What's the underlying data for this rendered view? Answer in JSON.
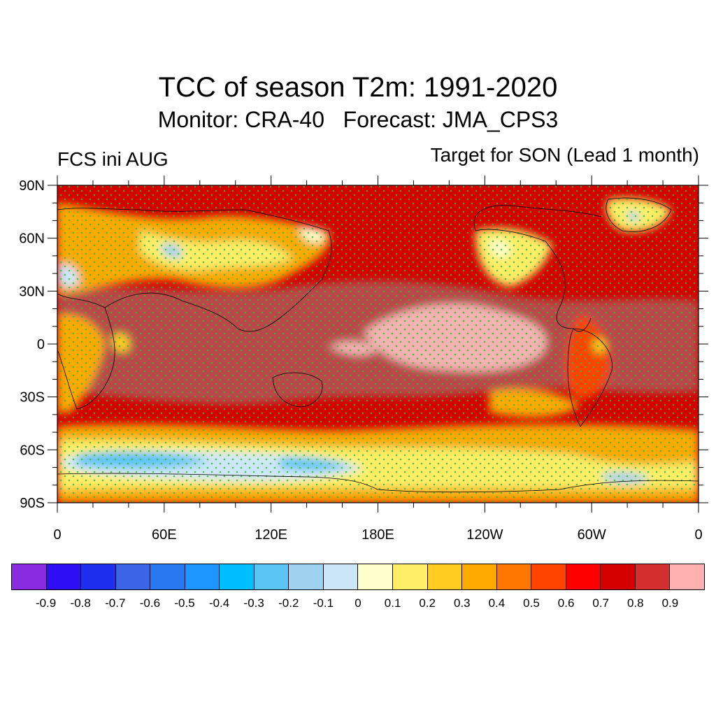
{
  "title": "TCC of season T2m: 1991-2020",
  "subtitle": {
    "monitor": "Monitor: CRA-40",
    "forecast": "Forecast: JMA_CPS3"
  },
  "left_label": "FCS ini AUG",
  "right_label": "Target for SON (Lead 1 month)",
  "map": {
    "projection": "equirectangular",
    "lon_range": [
      0,
      360
    ],
    "lat_range": [
      -90,
      90
    ],
    "lat_ticks": [
      "90N",
      "60N",
      "30N",
      "0",
      "30S",
      "60S",
      "90S"
    ],
    "lon_ticks": [
      "0",
      "60E",
      "120E",
      "180E",
      "120W",
      "60W",
      "0"
    ],
    "stipple_color": "#3cb43c",
    "coastline_color": "#000000"
  },
  "colorbar": {
    "colors": [
      "#8a2be2",
      "#2e0ff5",
      "#1e2ff0",
      "#3c64e6",
      "#2878f0",
      "#1e96ff",
      "#00bfff",
      "#5ac5f5",
      "#a0d2f0",
      "#cce8f8",
      "#ffffcc",
      "#ffee66",
      "#ffcc22",
      "#ffaa00",
      "#ff7700",
      "#ff4400",
      "#ff0000",
      "#d40000",
      "#d43030",
      "#ffb0b0"
    ],
    "labels": [
      "-0.9",
      "-0.8",
      "-0.7",
      "-0.6",
      "-0.5",
      "-0.4",
      "-0.3",
      "-0.2",
      "-0.1",
      "0",
      "0.1",
      "0.2",
      "0.3",
      "0.4",
      "0.5",
      "0.6",
      "0.7",
      "0.8",
      "0.9"
    ]
  }
}
